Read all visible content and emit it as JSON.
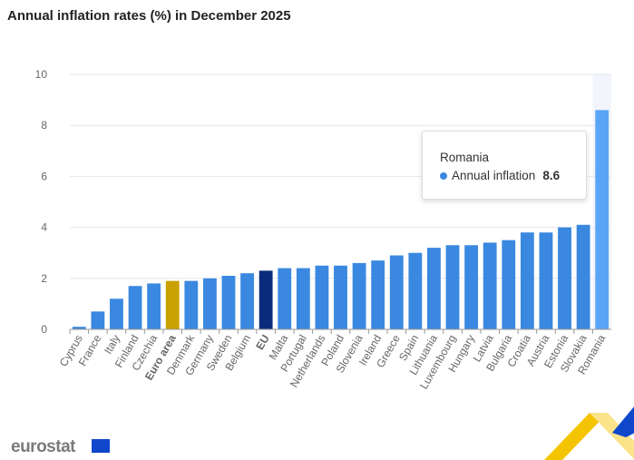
{
  "title": "Annual inflation rates (%) in December 2025",
  "chart_data": {
    "type": "bar",
    "title": "Annual inflation rates (%) in December 2025",
    "categories": [
      "Cyprus",
      "France",
      "Italy",
      "Finland",
      "Czechia",
      "Euro area",
      "Denmark",
      "Germany",
      "Sweden",
      "Belgium",
      "EU",
      "Malta",
      "Portugal",
      "Netherlands",
      "Poland",
      "Slovenia",
      "Ireland",
      "Greece",
      "Spain",
      "Lithuania",
      "Luxembourg",
      "Hungary",
      "Latvia",
      "Bulgaria",
      "Croatia",
      "Austria",
      "Estonia",
      "Slovakia",
      "Romania"
    ],
    "values": [
      0.1,
      0.7,
      1.2,
      1.7,
      1.8,
      1.9,
      1.9,
      2.0,
      2.1,
      2.2,
      2.3,
      2.4,
      2.4,
      2.5,
      2.5,
      2.6,
      2.7,
      2.9,
      3.0,
      3.2,
      3.3,
      3.3,
      3.4,
      3.5,
      3.8,
      3.8,
      4.0,
      4.1,
      8.6
    ],
    "series": [
      {
        "name": "Annual inflation"
      }
    ],
    "ylim": [
      0,
      10
    ],
    "yticks": [
      "0",
      "2",
      "4",
      "6",
      "8",
      "10"
    ],
    "grid": true,
    "highlighted": [
      "Euro area",
      "EU"
    ],
    "colors": {
      "default": "#3a88e0",
      "Euro area": "#c9a100",
      "EU": "#0b2a7a",
      "hover": "#5aa5f5"
    },
    "hovered": "Romania"
  },
  "tooltip": {
    "country": "Romania",
    "series": "Annual inflation",
    "value": "8.6"
  },
  "logo": "eurostat"
}
